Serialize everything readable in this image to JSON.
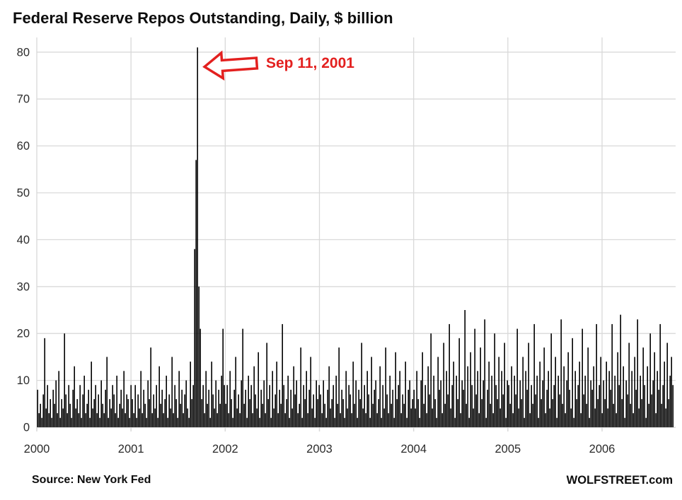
{
  "title": "Federal Reserve Repos Outstanding, Daily, $ billion",
  "annotation": {
    "label": "Sep 11, 2001",
    "color": "#e3201f",
    "arrow_icon": "left-block-arrow"
  },
  "footer": {
    "source": "Source: New York Fed",
    "brand": "WOLFSTREET.com"
  },
  "colors": {
    "bar": "#000000",
    "gridline": "#d9d9d9",
    "tick_label": "#2b2b2b",
    "annotation_red": "#e3201f",
    "background": "#ffffff"
  },
  "chart_data": {
    "type": "bar",
    "title": "Federal Reserve Repos Outstanding, Daily, $ billion",
    "xlabel": "",
    "ylabel": "$ billion",
    "x_ticks": [
      "2000",
      "2001",
      "2002",
      "2003",
      "2004",
      "2005",
      "2006"
    ],
    "y_ticks": [
      0,
      10,
      20,
      30,
      40,
      50,
      60,
      70,
      80
    ],
    "ylim": [
      0,
      83
    ],
    "x_range_years": [
      2000.0,
      2006.74
    ],
    "grid": true,
    "legend": "none",
    "peak_annotation": {
      "date": "Sep 11, 2001",
      "value": 81,
      "neighbors": [
        38,
        57,
        30
      ]
    },
    "values": [
      8,
      3,
      5,
      2,
      7,
      19,
      4,
      9,
      3,
      6,
      2,
      8,
      5,
      10,
      3,
      12,
      2,
      6,
      4,
      20,
      7,
      3,
      9,
      5,
      2,
      8,
      13,
      4,
      6,
      3,
      9,
      2,
      7,
      11,
      3,
      5,
      8,
      2,
      14,
      4,
      6,
      9,
      3,
      7,
      2,
      10,
      5,
      3,
      8,
      15,
      2,
      6,
      4,
      9,
      7,
      3,
      11,
      2,
      5,
      8,
      4,
      12,
      3,
      7,
      6,
      2,
      9,
      6,
      3,
      9,
      2,
      7,
      4,
      12,
      3,
      8,
      5,
      2,
      10,
      6,
      17,
      3,
      7,
      4,
      9,
      2,
      13,
      5,
      8,
      3,
      6,
      11,
      2,
      7,
      4,
      15,
      3,
      9,
      6,
      2,
      12,
      5,
      8,
      3,
      7,
      10,
      4,
      2,
      14,
      6,
      9,
      38,
      57,
      81,
      30,
      21,
      6,
      9,
      3,
      12,
      5,
      8,
      2,
      14,
      7,
      4,
      10,
      3,
      8,
      5,
      11,
      21,
      9,
      5,
      9,
      3,
      12,
      6,
      2,
      8,
      15,
      4,
      7,
      3,
      10,
      21,
      5,
      8,
      2,
      11,
      6,
      9,
      3,
      13,
      7,
      4,
      16,
      2,
      8,
      5,
      10,
      3,
      18,
      6,
      9,
      2,
      12,
      4,
      7,
      14,
      3,
      8,
      5,
      22,
      9,
      3,
      6,
      11,
      2,
      8,
      4,
      13,
      7,
      10,
      3,
      5,
      17,
      2,
      9,
      6,
      12,
      3,
      8,
      15,
      4,
      7,
      2,
      10,
      6,
      9,
      7,
      3,
      10,
      5,
      2,
      8,
      13,
      4,
      6,
      9,
      2,
      11,
      5,
      17,
      3,
      8,
      6,
      2,
      12,
      4,
      9,
      7,
      3,
      14,
      5,
      10,
      2,
      8,
      6,
      18,
      4,
      9,
      3,
      12,
      7,
      2,
      15,
      5,
      8,
      10,
      3,
      6,
      13,
      2,
      9,
      4,
      17,
      7,
      3,
      11,
      5,
      8,
      2,
      16,
      6,
      9,
      12,
      3,
      7,
      5,
      14,
      2,
      8,
      10,
      4,
      6,
      8,
      4,
      12,
      6,
      2,
      10,
      16,
      5,
      9,
      3,
      13,
      7,
      20,
      4,
      11,
      6,
      2,
      15,
      8,
      10,
      3,
      18,
      5,
      12,
      7,
      22,
      4,
      9,
      14,
      2,
      11,
      6,
      19,
      3,
      10,
      8,
      25,
      5,
      13,
      2,
      16,
      9,
      4,
      21,
      7,
      12,
      3,
      17,
      6,
      10,
      23,
      2,
      8,
      14,
      5,
      11,
      3,
      20,
      9,
      6,
      15,
      4,
      12,
      7,
      18,
      2,
      10,
      9,
      5,
      13,
      3,
      11,
      7,
      21,
      4,
      10,
      6,
      15,
      2,
      12,
      8,
      18,
      3,
      9,
      5,
      22,
      7,
      11,
      2,
      14,
      6,
      10,
      17,
      3,
      8,
      12,
      4,
      20,
      6,
      9,
      15,
      2,
      11,
      7,
      23,
      5,
      13,
      3,
      10,
      16,
      8,
      4,
      19,
      2,
      12,
      6,
      9,
      14,
      3,
      21,
      7,
      11,
      5,
      17,
      2,
      10,
      8,
      13,
      4,
      22,
      6,
      9,
      15,
      3,
      10,
      6,
      14,
      4,
      12,
      8,
      22,
      5,
      11,
      3,
      16,
      9,
      24,
      6,
      13,
      2,
      10,
      7,
      18,
      5,
      12,
      3,
      15,
      8,
      23,
      4,
      11,
      6,
      17,
      9,
      2,
      13,
      5,
      20,
      7,
      10,
      16,
      3,
      12,
      8,
      22,
      5,
      9,
      14,
      4,
      18,
      6,
      11,
      15,
      9
    ]
  }
}
